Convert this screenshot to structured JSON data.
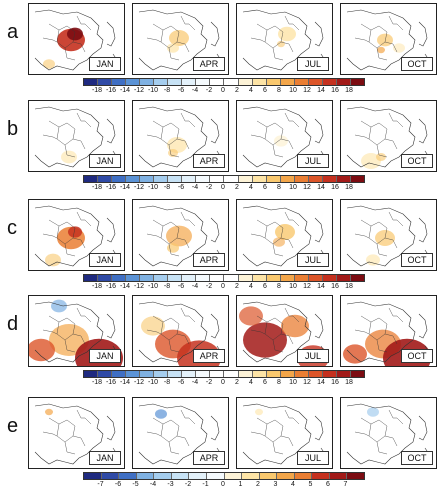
{
  "rows": [
    {
      "letter": "a",
      "months": [
        "JAN",
        "APR",
        "JUL",
        "OCT"
      ],
      "ticks": [
        "-18",
        "-16",
        "-14",
        "-12",
        "-10",
        "-8",
        "-6",
        "-4",
        "-2",
        "0",
        "2",
        "4",
        "6",
        "8",
        "10",
        "12",
        "14",
        "16",
        "18"
      ]
    },
    {
      "letter": "b",
      "months": [
        "JAN",
        "APR",
        "JUL",
        "OCT"
      ],
      "ticks": [
        "-18",
        "-16",
        "-14",
        "-12",
        "-10",
        "-8",
        "-6",
        "-4",
        "-2",
        "0",
        "2",
        "4",
        "6",
        "8",
        "10",
        "12",
        "14",
        "16",
        "18"
      ]
    },
    {
      "letter": "c",
      "months": [
        "JAN",
        "APR",
        "JUL",
        "OCT"
      ],
      "ticks": [
        "-18",
        "-16",
        "-14",
        "-12",
        "-10",
        "-8",
        "-6",
        "-4",
        "-2",
        "0",
        "2",
        "4",
        "6",
        "8",
        "10",
        "12",
        "14",
        "16",
        "18"
      ]
    },
    {
      "letter": "d",
      "months": [
        "JAN",
        "APR",
        "JUL",
        "OCT"
      ],
      "ticks": [
        "-18",
        "-16",
        "-14",
        "-12",
        "-10",
        "-8",
        "-6",
        "-4",
        "-2",
        "0",
        "2",
        "4",
        "6",
        "8",
        "10",
        "12",
        "14",
        "16",
        "18"
      ]
    },
    {
      "letter": "e",
      "months": [
        "JAN",
        "APR",
        "JUL",
        "OCT"
      ],
      "ticks": [
        "-7",
        "-6",
        "-5",
        "-4",
        "-3",
        "-2",
        "-1",
        "0",
        "1",
        "2",
        "3",
        "4",
        "5",
        "6",
        "7"
      ]
    }
  ],
  "colors": {
    "scale": [
      "#1f2a80",
      "#2f4aa6",
      "#3f6fc4",
      "#5b93d6",
      "#7fb1e2",
      "#a5cdee",
      "#c7e2f5",
      "#e3f1fa",
      "#f5fafd",
      "#ffffff",
      "#fdf3d7",
      "#fde4a6",
      "#f9c86e",
      "#f3a64a",
      "#ea7e33",
      "#dc5529",
      "#c5311f",
      "#a21a18",
      "#7c0c12"
    ]
  }
}
